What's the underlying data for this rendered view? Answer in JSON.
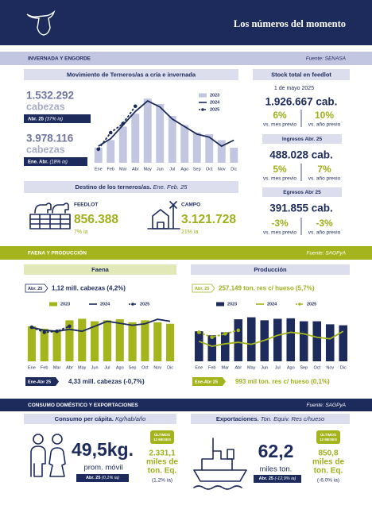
{
  "header": {
    "title": "Los números del momento"
  },
  "section1": {
    "title": "INVERNADA Y ENGORDE",
    "source": "Fuente: SENASA",
    "terneros": {
      "value1": "1.532.292",
      "unit1": "cabezas",
      "tag1_period": "Abr. 25",
      "tag1_change": "(37% ia)",
      "value2": "3.978.116",
      "unit2": "cabezas",
      "tag2_period": "Ene. Abr.",
      "tag2_change": "(18% ia)"
    },
    "destino": {
      "title": "Destino de los terneros/as.",
      "period": "Ene. Feb. 25",
      "feedlot_label": "FEEDLOT",
      "feedlot_value": "856.388",
      "feedlot_change": "7% ia",
      "campo_label": "CAMPO",
      "campo_value": "3.121.728",
      "campo_change": "21% ia"
    },
    "feedlot": {
      "title": "Stock total en feedlot",
      "date": "1 de mayo 2025",
      "stock": "1.926.667 cab.",
      "stock_m": "6%",
      "stock_y": "10%",
      "m_label": "vs. mes previo",
      "y_label": "vs. año previo",
      "ingresos_title": "Ingresos Abr. 25",
      "ingresos": "488.028 cab.",
      "ingresos_m": "5%",
      "ingresos_y": "7%",
      "egresos_title": "Egresos Abr 25",
      "egresos": "391.855 cab.",
      "egresos_m": "-3%",
      "egresos_y": "-3%"
    }
  },
  "section2": {
    "title": "FAENA Y PRODUCCIÓN",
    "source": "Fuente: SAGPyA",
    "faena": {
      "month_tag": "Abr. 25",
      "month_text": "1,12 mill. cabezas (4,2%)",
      "ytd_tag": "Ene-Abr 25",
      "ytd_text": "4,33 mill. cabezas (-0,7%)"
    },
    "produccion": {
      "month_tag": "Abr. 25",
      "month_text": "257.149 ton. res c/ hueso (5,7%)",
      "ytd_tag": "Ene-Abr 25",
      "ytd_text": "993 mil ton. res c/ hueso (0,1%)"
    }
  },
  "section3": {
    "title": "CONSUMO DOMÉSTICO Y EXPORTACIONES",
    "source": "Fuente: SAGPyA",
    "consumo": {
      "title": "Consumo per cápita.",
      "unit": "Kg/hab/año",
      "value": "49,5kg.",
      "value_label": "prom. móvil",
      "tag": "Abr. 25",
      "change": "(0,1% ia)",
      "badge": [
        "ÚLTIMOS",
        "12 MESES"
      ],
      "total": [
        "2.331,1",
        "miles de",
        "ton. Eq."
      ],
      "total_change": "(1,2% ia)"
    },
    "export": {
      "title": "Exportaciones.",
      "unit": "Ton. Equiv. Res c/hueso",
      "value": "62,2",
      "value_label": "miles ton.",
      "tag": "Abr. 25",
      "change": "(-12,9% ia)",
      "badge": [
        "ÚLTIMOS",
        "12 MESES"
      ],
      "total": [
        "850,8",
        "miles de",
        "ton. Eq."
      ],
      "total_change": "(-6,0% ia)"
    }
  },
  "chart_data": [
    {
      "type": "bar",
      "title": "Movimiento de Terneros/as a cría e invernada",
      "categories": [
        "Ene",
        "Feb",
        "Mar",
        "Abr",
        "May",
        "Jun",
        "Jul",
        "Ago",
        "Sep",
        "Oct",
        "Nov",
        "Dic"
      ],
      "ylim": [
        0,
        100
      ],
      "legend": "vertical",
      "series": [
        {
          "name": "2023",
          "mark": "bar",
          "color": "#c3c6e0",
          "values": [
            20,
            30,
            48,
            65,
            85,
            78,
            62,
            50,
            40,
            38,
            30,
            20
          ]
        },
        {
          "name": "2024",
          "mark": "line",
          "color": "#1d2a5c",
          "values": [
            22,
            32,
            50,
            68,
            82,
            74,
            58,
            48,
            38,
            34,
            22,
            30
          ]
        },
        {
          "name": "2025",
          "mark": "dashed-dots",
          "color": "#1d2a5c",
          "values": [
            18,
            40,
            52,
            75,
            null,
            null,
            null,
            null,
            null,
            null,
            null,
            null
          ]
        }
      ]
    },
    {
      "type": "bar",
      "title": "Faena",
      "categories": [
        "Ene",
        "Feb",
        "Mar",
        "Abr",
        "May",
        "Jun",
        "Jul",
        "Ago",
        "Sep",
        "Oct",
        "Nov",
        "Dic"
      ],
      "ylim": [
        0,
        100
      ],
      "legend": "horizontal",
      "series": [
        {
          "name": "2023",
          "mark": "bar",
          "color": "#a4b41c",
          "values": [
            70,
            65,
            62,
            82,
            85,
            80,
            82,
            84,
            78,
            82,
            78,
            75
          ]
        },
        {
          "name": "2024",
          "mark": "line",
          "color": "#1d2a5c",
          "values": [
            68,
            62,
            60,
            64,
            60,
            70,
            80,
            76,
            72,
            75,
            84,
            80
          ]
        },
        {
          "name": "2025",
          "mark": "dashed-dots",
          "color": "#1d2a5c",
          "values": [
            68,
            58,
            60,
            70,
            null,
            null,
            null,
            null,
            null,
            null,
            null,
            null
          ]
        }
      ]
    },
    {
      "type": "bar",
      "title": "Producción",
      "categories": [
        "Ene",
        "Feb",
        "Mar",
        "Abr",
        "May",
        "Jun",
        "Jul",
        "Ago",
        "Sep",
        "Oct",
        "Nov",
        "Dic"
      ],
      "ylim": [
        0,
        100
      ],
      "legend": "horizontal",
      "series": [
        {
          "name": "2023",
          "mark": "bar",
          "color": "#1d2a5c",
          "values": [
            60,
            52,
            58,
            84,
            88,
            82,
            85,
            86,
            80,
            80,
            74,
            72
          ]
        },
        {
          "name": "2024",
          "mark": "line",
          "color": "#a4b41c",
          "values": [
            40,
            30,
            35,
            38,
            34,
            42,
            52,
            58,
            55,
            48,
            45,
            60
          ]
        },
        {
          "name": "2025",
          "mark": "dashed-dots",
          "color": "#a4b41c",
          "values": [
            58,
            48,
            55,
            62,
            null,
            null,
            null,
            null,
            null,
            null,
            null,
            null
          ]
        }
      ]
    }
  ]
}
